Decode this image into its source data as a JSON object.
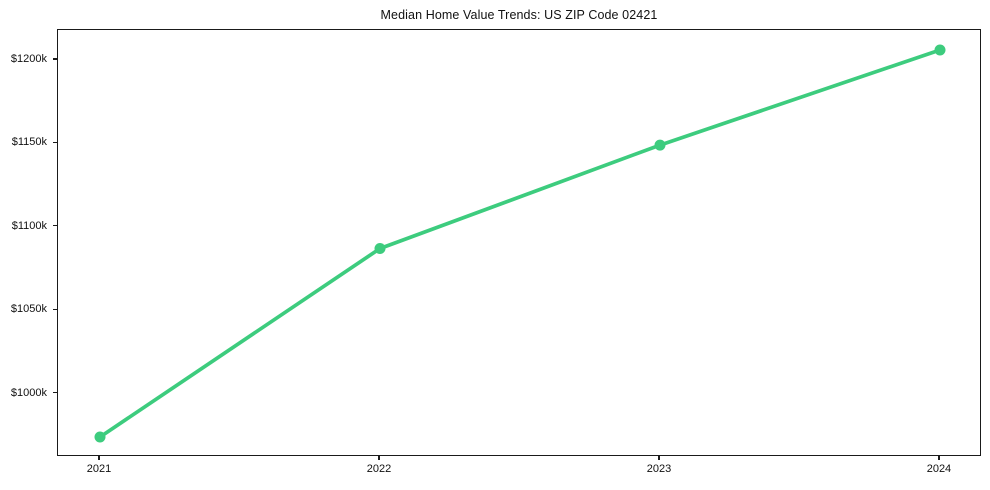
{
  "figure": {
    "background": "#ffffff"
  },
  "chart_data": {
    "type": "line",
    "title": "Median Home Value Trends: US ZIP Code 02421",
    "categories": [
      "2021",
      "2022",
      "2023",
      "2024"
    ],
    "values": [
      974,
      1087,
      1149,
      1206
    ],
    "values_unit": "thousand USD",
    "xlabel": "",
    "ylabel": "",
    "ylim": [
      962,
      1218
    ],
    "yticks": [
      1000,
      1050,
      1100,
      1150,
      1200
    ],
    "ytick_labels": [
      "$1000k",
      "$1050k",
      "$1100k",
      "$1150k",
      "$1200k"
    ],
    "grid": false,
    "legend": false,
    "legend_position": "none",
    "line_color": "#3dcc7e",
    "marker": "circle",
    "marker_size": 5.5,
    "line_width": 3.7,
    "axis_color": "#1a1a1a",
    "text_color": "#111111"
  }
}
